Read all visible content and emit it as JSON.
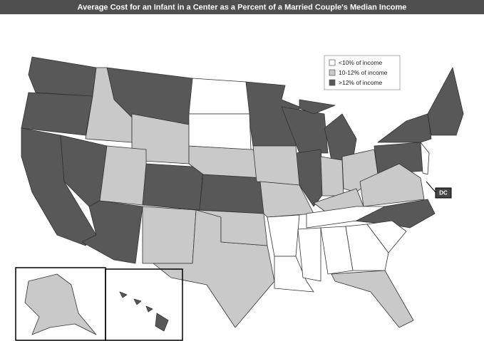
{
  "title": "Average Cost for an Infant in a Center as a Percent of a Married Couple's Median Income",
  "legend": {
    "items": [
      {
        "label": "<10% of income",
        "color": "#ffffff"
      },
      {
        "label": "10-12% of income",
        "color": "#c9c9c9"
      },
      {
        "label": ">12% of income",
        "color": "#585858"
      }
    ]
  },
  "callout": {
    "label": "DC"
  }
}
